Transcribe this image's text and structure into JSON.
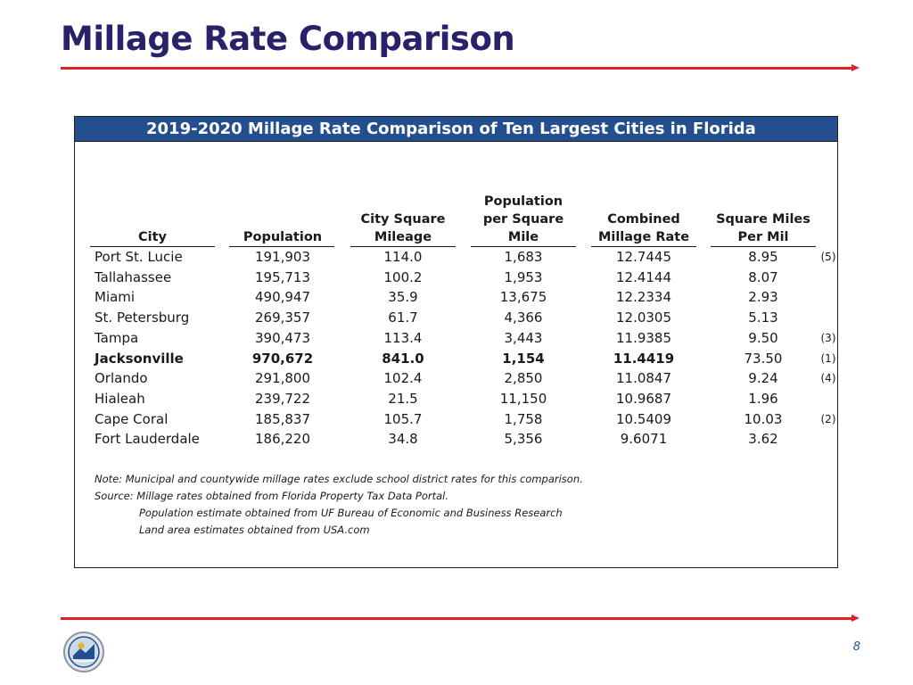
{
  "page": {
    "title": "Millage Rate Comparison",
    "page_number": "8"
  },
  "panel": {
    "title": "2019-2020 Millage Rate Comparison of Ten Largest Cities in Florida"
  },
  "table": {
    "columns": {
      "city": "City",
      "population": "Population",
      "city_square_mileage": [
        "City Square",
        "Mileage"
      ],
      "population_per_square_mile": [
        "Population",
        "per Square",
        "Mile"
      ],
      "combined_millage_rate": [
        "Combined",
        "Millage Rate"
      ],
      "square_miles_per_mil": [
        "Square Miles",
        "Per Mil"
      ]
    },
    "rows": [
      {
        "city": "Port St. Lucie",
        "population": "191,903",
        "sq_mileage": "114.0",
        "pop_per_sq_mile": "1,683",
        "millage_rate": "12.7445",
        "sq_miles_per_mil": "8.95",
        "note": "(5)"
      },
      {
        "city": "Tallahassee",
        "population": "195,713",
        "sq_mileage": "100.2",
        "pop_per_sq_mile": "1,953",
        "millage_rate": "12.4144",
        "sq_miles_per_mil": "8.07",
        "note": ""
      },
      {
        "city": "Miami",
        "population": "490,947",
        "sq_mileage": "35.9",
        "pop_per_sq_mile": "13,675",
        "millage_rate": "12.2334",
        "sq_miles_per_mil": "2.93",
        "note": ""
      },
      {
        "city": "St. Petersburg",
        "population": "269,357",
        "sq_mileage": "61.7",
        "pop_per_sq_mile": "4,366",
        "millage_rate": "12.0305",
        "sq_miles_per_mil": "5.13",
        "note": ""
      },
      {
        "city": "Tampa",
        "population": "390,473",
        "sq_mileage": "113.4",
        "pop_per_sq_mile": "3,443",
        "millage_rate": "11.9385",
        "sq_miles_per_mil": "9.50",
        "note": "(3)"
      },
      {
        "city": "Jacksonville",
        "population": "970,672",
        "sq_mileage": "841.0",
        "pop_per_sq_mile": "1,154",
        "millage_rate": "11.4419",
        "sq_miles_per_mil": "73.50",
        "note": "(1)",
        "bold": true
      },
      {
        "city": "Orlando",
        "population": "291,800",
        "sq_mileage": "102.4",
        "pop_per_sq_mile": "2,850",
        "millage_rate": "11.0847",
        "sq_miles_per_mil": "9.24",
        "note": "(4)"
      },
      {
        "city": "Hialeah",
        "population": "239,722",
        "sq_mileage": "21.5",
        "pop_per_sq_mile": "11,150",
        "millage_rate": "10.9687",
        "sq_miles_per_mil": "1.96",
        "note": ""
      },
      {
        "city": "Cape Coral",
        "population": "185,837",
        "sq_mileage": "105.7",
        "pop_per_sq_mile": "1,758",
        "millage_rate": "10.5409",
        "sq_miles_per_mil": "10.03",
        "note": "(2)"
      },
      {
        "city": "Fort Lauderdale",
        "population": "186,220",
        "sq_mileage": "34.8",
        "pop_per_sq_mile": "5,356",
        "millage_rate": "9.6071",
        "sq_miles_per_mil": "3.62",
        "note": ""
      }
    ]
  },
  "notes": {
    "note": "Note:  Municipal and countywide millage rates exclude school district rates for this comparison.",
    "source": "Source:  Millage rates obtained from Florida Property Tax Data Portal.",
    "source_line2": "Population estimate obtained from UF Bureau of Economic and Business Research",
    "source_line3": "Land area estimates obtained from USA.com"
  },
  "colors": {
    "title": "#27226a",
    "accent_rule": "#e02128",
    "header_bar": "#244f8e"
  },
  "icons": {
    "logo": "city-seal-logo"
  }
}
